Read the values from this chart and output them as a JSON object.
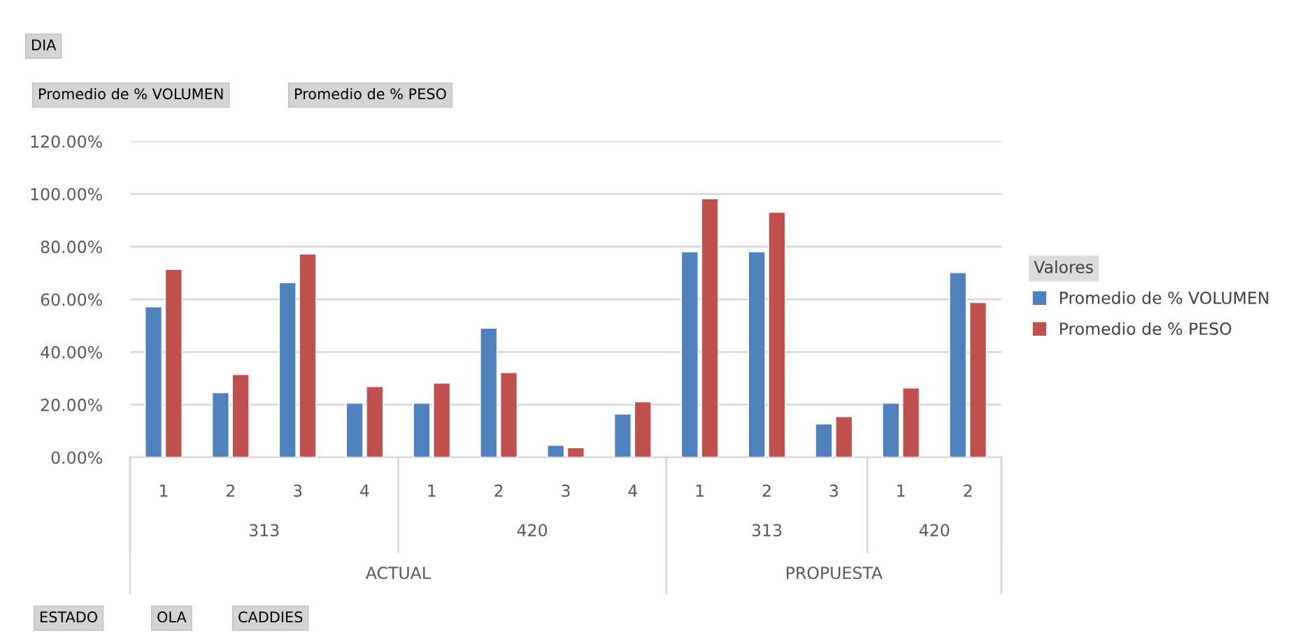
{
  "chart_data": {
    "type": "bar",
    "categories": [
      "1",
      "2",
      "3",
      "4",
      "1",
      "2",
      "3",
      "4",
      "1",
      "2",
      "3",
      "1",
      "2"
    ],
    "series": [
      {
        "name": "Promedio de % VOLUMEN",
        "color": "#4f81bd",
        "values": [
          57.2,
          24.6,
          66.3,
          20.6,
          20.6,
          49.1,
          4.6,
          16.5,
          78.1,
          78.1,
          12.7,
          20.6,
          70.2
        ]
      },
      {
        "name": "Promedio de % PESO",
        "color": "#c0504d",
        "values": [
          71.4,
          31.5,
          77.2,
          26.9,
          28.2,
          32.2,
          3.7,
          21.1,
          98.2,
          93.1,
          15.5,
          26.4,
          58.8
        ]
      }
    ],
    "ylim": [
      0,
      120
    ],
    "yticks": [
      {
        "value": 0,
        "label": "0.00%"
      },
      {
        "value": 20,
        "label": "20.00%"
      },
      {
        "value": 40,
        "label": "40.00%"
      },
      {
        "value": 60,
        "label": "60.00%"
      },
      {
        "value": 80,
        "label": "80.00%"
      },
      {
        "value": 100,
        "label": "100.00%"
      },
      {
        "value": 120,
        "label": "120.00%"
      }
    ],
    "grid": "y",
    "legend": "right",
    "legend_title": "Valores",
    "annotations": [
      "313",
      "420",
      "313",
      "420",
      "ACTUAL",
      "PROPUESTA",
      "DIA",
      "Promedio de % VOLUMEN",
      "Promedio de % PESO",
      "ESTADO",
      "OLA",
      "CADDIES"
    ]
  }
}
